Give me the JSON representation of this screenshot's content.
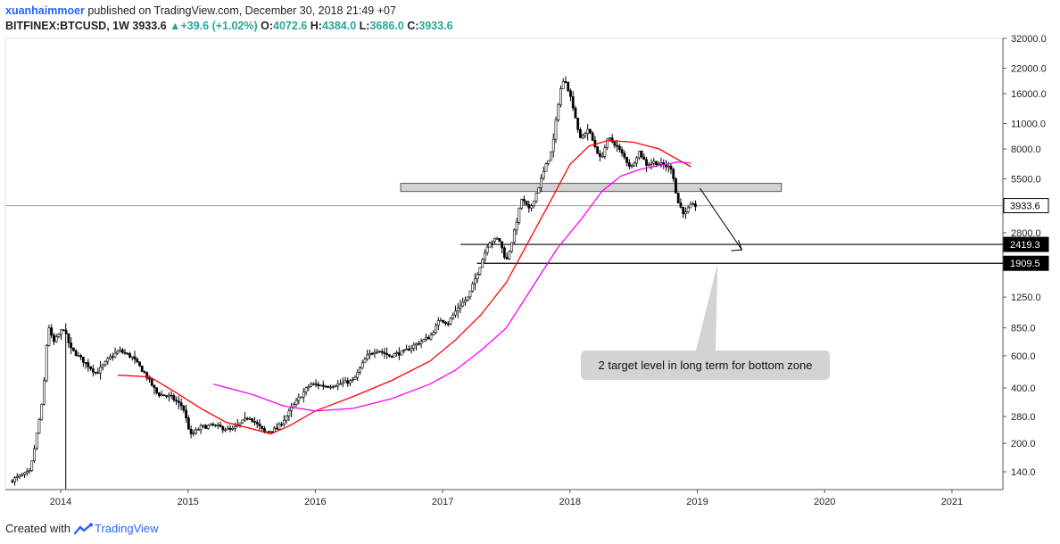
{
  "header": {
    "author": "xuanhaimmoer",
    "published": "published on TradingView.com, December 30, 2018 21:49 +07",
    "symbol": "BITFINEX:BTCUSD, 1W",
    "last": "3933.6",
    "change_arrow": "▲",
    "change": "+39.6 (+1.02%)",
    "open_label": "O:",
    "open": "4072.6",
    "high_label": "H:",
    "high": "4384.0",
    "low_label": "L:",
    "low": "3686.0",
    "close_label": "C:",
    "close": "3933.6"
  },
  "footer": {
    "created_with": "Created with",
    "brand": "TradingView"
  },
  "colors": {
    "ma_red": "#ff0000",
    "ma_magenta": "#ff00ff",
    "candle": "#000000",
    "zone": "#d3d3d3",
    "annotation_bg": "#d3d3d3"
  },
  "chart_data": {
    "type": "candlestick",
    "yscale": "log",
    "ylim": [
      112,
      32000
    ],
    "x_tick_labels": [
      "2014",
      "2015",
      "2016",
      "2017",
      "2018",
      "2019",
      "2020",
      "2021"
    ],
    "y_tick_labels": [
      "32000.0",
      "22000.0",
      "16000.0",
      "11000.0",
      "8000.0",
      "5500.0",
      "3933.6",
      "2800.0",
      "2419.3",
      "1909.5",
      "1250.0",
      "850.0",
      "600.0",
      "400.0",
      "280.0",
      "200.0",
      "140.0"
    ],
    "y_ticks": [
      32000,
      22000,
      16000,
      11000,
      8000,
      5500,
      2800,
      1250,
      850,
      600,
      400,
      280,
      200,
      140
    ],
    "last_price": 3933.6,
    "levels": [
      {
        "label": "2419.3",
        "value": 2419.3,
        "from": "2017.14"
      },
      {
        "label": "1909.5",
        "value": 1909.5,
        "from": "2017.27"
      }
    ],
    "zone": {
      "from": 2016.67,
      "to": 2019.66,
      "low": 4700,
      "high": 5200
    },
    "price_path": [
      [
        2013.62,
        125
      ],
      [
        2013.78,
        140
      ],
      [
        2013.88,
        350
      ],
      [
        2013.92,
        900
      ],
      [
        2013.96,
        700
      ],
      [
        2014.04,
        850
      ],
      [
        2014.1,
        650
      ],
      [
        2014.2,
        560
      ],
      [
        2014.3,
        480
      ],
      [
        2014.4,
        580
      ],
      [
        2014.48,
        640
      ],
      [
        2014.58,
        590
      ],
      [
        2014.68,
        480
      ],
      [
        2014.78,
        370
      ],
      [
        2014.88,
        360
      ],
      [
        2014.98,
        315
      ],
      [
        2015.04,
        220
      ],
      [
        2015.12,
        245
      ],
      [
        2015.22,
        250
      ],
      [
        2015.36,
        235
      ],
      [
        2015.5,
        280
      ],
      [
        2015.62,
        230
      ],
      [
        2015.72,
        240
      ],
      [
        2015.82,
        300
      ],
      [
        2015.9,
        360
      ],
      [
        2015.98,
        420
      ],
      [
        2016.1,
        410
      ],
      [
        2016.2,
        420
      ],
      [
        2016.32,
        440
      ],
      [
        2016.42,
        590
      ],
      [
        2016.5,
        650
      ],
      [
        2016.6,
        600
      ],
      [
        2016.72,
        630
      ],
      [
        2016.82,
        700
      ],
      [
        2016.92,
        760
      ],
      [
        2017.0,
        950
      ],
      [
        2017.06,
        900
      ],
      [
        2017.14,
        1100
      ],
      [
        2017.22,
        1250
      ],
      [
        2017.3,
        1750
      ],
      [
        2017.38,
        2500
      ],
      [
        2017.46,
        2600
      ],
      [
        2017.52,
        1950
      ],
      [
        2017.58,
        2800
      ],
      [
        2017.64,
        4300
      ],
      [
        2017.7,
        3700
      ],
      [
        2017.76,
        4700
      ],
      [
        2017.82,
        6200
      ],
      [
        2017.88,
        8000
      ],
      [
        2017.94,
        16500
      ],
      [
        2017.98,
        19500
      ],
      [
        2018.04,
        14000
      ],
      [
        2018.1,
        9000
      ],
      [
        2018.16,
        10300
      ],
      [
        2018.2,
        8800
      ],
      [
        2018.26,
        7000
      ],
      [
        2018.32,
        9200
      ],
      [
        2018.38,
        8400
      ],
      [
        2018.44,
        7300
      ],
      [
        2018.5,
        6300
      ],
      [
        2018.56,
        7800
      ],
      [
        2018.62,
        6600
      ],
      [
        2018.68,
        6800
      ],
      [
        2018.76,
        6500
      ],
      [
        2018.82,
        6300
      ],
      [
        2018.86,
        4200
      ],
      [
        2018.92,
        3500
      ],
      [
        2018.96,
        3900
      ],
      [
        2018.99,
        3933.6
      ]
    ],
    "ma_red": [
      [
        2014.45,
        470
      ],
      [
        2014.7,
        460
      ],
      [
        2014.9,
        380
      ],
      [
        2015.1,
        310
      ],
      [
        2015.3,
        260
      ],
      [
        2015.5,
        240
      ],
      [
        2015.65,
        225
      ],
      [
        2015.8,
        250
      ],
      [
        2016.0,
        300
      ],
      [
        2016.3,
        360
      ],
      [
        2016.6,
        440
      ],
      [
        2016.9,
        560
      ],
      [
        2017.1,
        730
      ],
      [
        2017.3,
        1000
      ],
      [
        2017.5,
        1500
      ],
      [
        2017.7,
        2700
      ],
      [
        2017.85,
        4200
      ],
      [
        2018.0,
        6600
      ],
      [
        2018.15,
        8300
      ],
      [
        2018.3,
        8900
      ],
      [
        2018.5,
        8700
      ],
      [
        2018.7,
        8000
      ],
      [
        2018.8,
        7300
      ],
      [
        2018.95,
        6400
      ]
    ],
    "ma_magenta": [
      [
        2015.2,
        420
      ],
      [
        2015.5,
        370
      ],
      [
        2015.75,
        320
      ],
      [
        2016.0,
        300
      ],
      [
        2016.3,
        310
      ],
      [
        2016.6,
        350
      ],
      [
        2016.9,
        420
      ],
      [
        2017.1,
        500
      ],
      [
        2017.3,
        640
      ],
      [
        2017.5,
        850
      ],
      [
        2017.7,
        1400
      ],
      [
        2017.9,
        2300
      ],
      [
        2018.1,
        3400
      ],
      [
        2018.25,
        4700
      ],
      [
        2018.4,
        5700
      ],
      [
        2018.55,
        6200
      ],
      [
        2018.7,
        6500
      ],
      [
        2018.85,
        6800
      ],
      [
        2018.95,
        6700
      ]
    ],
    "annotation": "2 target level in long term for bottom zone"
  }
}
